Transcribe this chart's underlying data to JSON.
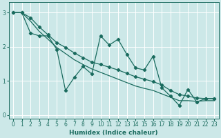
{
  "xlabel": "Humidex (Indice chaleur)",
  "bg_color": "#cce8e8",
  "grid_color": "#ffffff",
  "line_color": "#1a6b5e",
  "xlim": [
    -0.5,
    23.5
  ],
  "ylim": [
    -0.1,
    3.3
  ],
  "yticks": [
    0,
    1,
    2,
    3
  ],
  "xticks": [
    0,
    1,
    2,
    3,
    4,
    5,
    6,
    7,
    8,
    9,
    10,
    11,
    12,
    13,
    14,
    15,
    16,
    17,
    18,
    19,
    20,
    21,
    22,
    23
  ],
  "line1_x": [
    0,
    1,
    2,
    3,
    4,
    5,
    6,
    7,
    8,
    9,
    10,
    11,
    12,
    13,
    14,
    15,
    16,
    17,
    18,
    19,
    20,
    21,
    22,
    23
  ],
  "line1_y": [
    3.0,
    3.0,
    2.4,
    2.32,
    2.32,
    1.92,
    0.72,
    1.1,
    1.42,
    1.2,
    2.32,
    2.05,
    2.22,
    1.78,
    1.38,
    1.32,
    1.72,
    0.8,
    0.55,
    0.28,
    0.75,
    0.38,
    0.48,
    0.48
  ],
  "line2_x": [
    0,
    1,
    2,
    3,
    4,
    5,
    6,
    7,
    8,
    9,
    10,
    11,
    12,
    13,
    14,
    15,
    16,
    17,
    18,
    19,
    20,
    21,
    22,
    23
  ],
  "line2_y": [
    3.0,
    3.0,
    2.85,
    2.58,
    2.35,
    2.12,
    1.98,
    1.82,
    1.68,
    1.55,
    1.48,
    1.4,
    1.32,
    1.22,
    1.12,
    1.05,
    0.98,
    0.88,
    0.72,
    0.6,
    0.55,
    0.5,
    0.48,
    0.48
  ],
  "line3_x": [
    0,
    1,
    2,
    3,
    4,
    5,
    6,
    7,
    8,
    9,
    10,
    11,
    12,
    13,
    14,
    15,
    16,
    17,
    18,
    19,
    20,
    21,
    22,
    23
  ],
  "line3_y": [
    3.0,
    3.0,
    2.75,
    2.45,
    2.22,
    1.98,
    1.8,
    1.62,
    1.48,
    1.35,
    1.25,
    1.15,
    1.05,
    0.95,
    0.85,
    0.78,
    0.72,
    0.62,
    0.52,
    0.42,
    0.42,
    0.4,
    0.42,
    0.42
  ]
}
